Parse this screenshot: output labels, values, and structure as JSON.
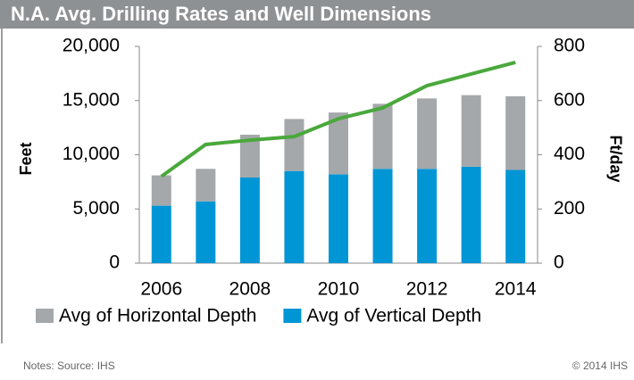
{
  "chart_data": {
    "type": "bar",
    "title": "N.A. Avg. Drilling Rates and Well Dimensions",
    "y_label": "Feet",
    "y2_label": "Ft/day",
    "categories": [
      "2006",
      null,
      "2008",
      null,
      "2010",
      null,
      "2012",
      null,
      "2014"
    ],
    "series": [
      {
        "name": "Avg of Horizontal Depth",
        "type": "bar",
        "color": "#a5a8ab",
        "values": [
          2800,
          3000,
          3950,
          4800,
          5700,
          6000,
          6500,
          6600,
          6800
        ]
      },
      {
        "name": "Avg of Vertical Depth",
        "type": "bar",
        "color": "#0096d6",
        "values": [
          5300,
          5700,
          7900,
          8500,
          8200,
          8700,
          8700,
          8900,
          8600
        ]
      },
      {
        "type": "line",
        "axis": "y2",
        "color": "#4aa83c",
        "values": [
          320,
          438,
          454,
          467,
          533,
          573,
          655,
          698,
          741
        ]
      }
    ],
    "stacked": true,
    "ylim": [
      0,
      20000
    ],
    "yticks": [
      0,
      {
        "value": 5000,
        "label": "5,000"
      },
      {
        "value": 10000,
        "label": "10,000"
      },
      {
        "value": 15000,
        "label": "15,000"
      },
      {
        "value": 20000,
        "label": "20,000"
      }
    ],
    "y2lim": [
      0,
      800
    ],
    "y2ticks": [
      0,
      200,
      400,
      600,
      800
    ],
    "notes": "Notes: Source: IHS",
    "copyright": "© 2014 IHS"
  }
}
